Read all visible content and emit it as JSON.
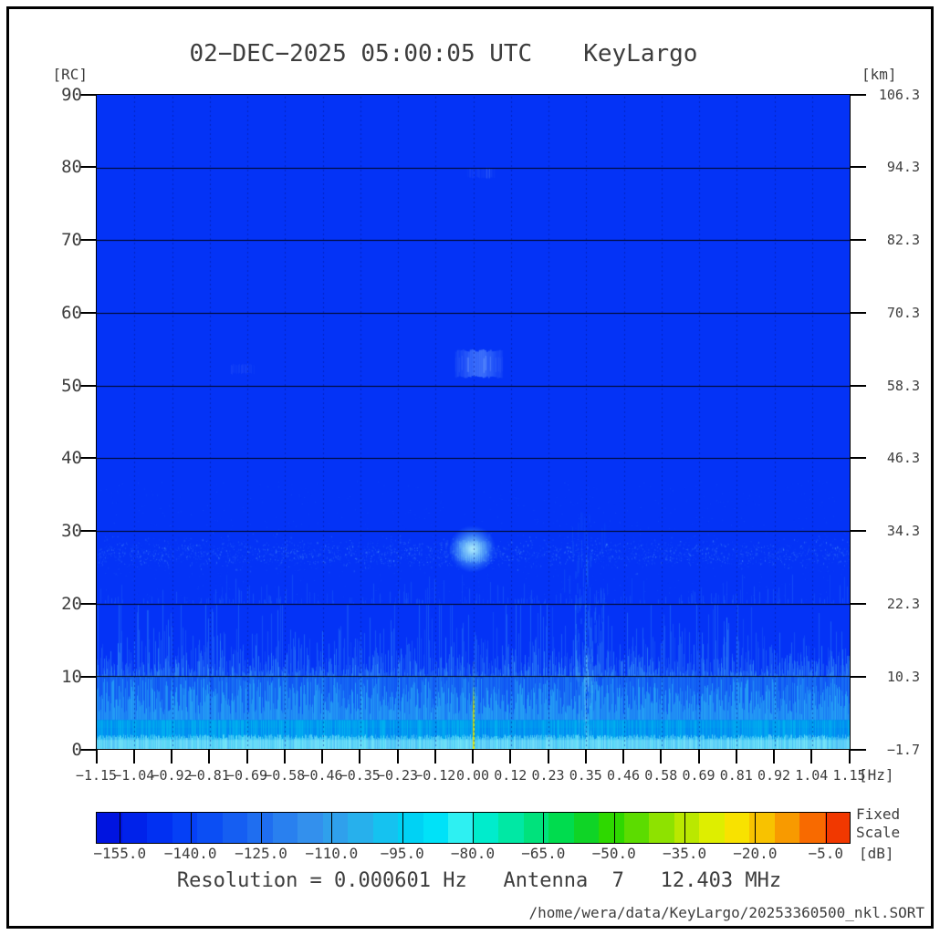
{
  "title": {
    "datetime": "02−DEC−2025 05:00:05 UTC",
    "station": "KeyLargo"
  },
  "axes": {
    "left": {
      "unit": "[RC]",
      "ticks": [
        "90",
        "80",
        "70",
        "60",
        "50",
        "40",
        "30",
        "20",
        "10",
        "0"
      ]
    },
    "right": {
      "unit": "[km]",
      "ticks": [
        "106.3",
        "94.3",
        "82.3",
        "70.3",
        "58.3",
        "46.3",
        "34.3",
        "22.3",
        "10.3",
        "−1.7"
      ]
    },
    "x": {
      "unit": "[Hz]",
      "ticks": [
        "−1.15",
        "−1.04",
        "−0.92",
        "−0.81",
        "−0.69",
        "−0.58",
        "−0.46",
        "−0.35",
        "−0.23",
        "−0.12",
        "0.00",
        "0.12",
        "0.23",
        "0.35",
        "0.46",
        "0.58",
        "0.69",
        "0.81",
        "0.92",
        "1.04",
        "1.15"
      ]
    }
  },
  "colorbar": {
    "unit": "[dB]",
    "mode_line1": "Fixed",
    "mode_line2": "Scale",
    "ticks": [
      "−155.0",
      "−140.0",
      "−125.0",
      "−110.0",
      "−95.0",
      "−80.0",
      "−65.0",
      "−50.0",
      "−35.0",
      "−20.0",
      "−5.0"
    ],
    "range_db": [
      -160,
      0
    ],
    "colors": [
      "#0014E0",
      "#0022EA",
      "#0130F2",
      "#0540F6",
      "#0B4EF4",
      "#155EF2",
      "#1F6EF0",
      "#2980EF",
      "#3390ED",
      "#2FA0EC",
      "#27B0EC",
      "#15C2F0",
      "#00D2F4",
      "#00E2F8",
      "#2EF0F2",
      "#00ECCC",
      "#00E8A4",
      "#00E27C",
      "#00DC4E",
      "#0FD426",
      "#2ED800",
      "#5CDC00",
      "#8EE200",
      "#BAE800",
      "#DEEE00",
      "#F8E200",
      "#F8C200",
      "#F89A00",
      "#F86A00",
      "#F13800"
    ]
  },
  "footer": {
    "text": "Resolution = 0.000601 Hz   Antenna  7   12.403 MHz"
  },
  "file_path": "/home/wera/data/KeyLargo/20253360500_nkl.SORT",
  "colors": {
    "plot_background": "#0433F6",
    "text": "#3D3D3D",
    "frame": "#000000",
    "noise_cyan": "#00D7EE",
    "noise_bright": "#8FF5FA",
    "dc_line_yellow": "#D8DC00",
    "echo_lightblue": "#6EA3FF",
    "echo_cyan": "#9FE3F8"
  },
  "chart_data": {
    "type": "heatmap",
    "title": "02-DEC-2025 05:00:05 UTC KeyLargo Doppler spectrum",
    "x_axis": {
      "label": "[Hz]",
      "min": -1.15,
      "max": 1.15,
      "tick_step": 0.115
    },
    "y_axis_left": {
      "label": "[RC]",
      "min": 0,
      "max": 90,
      "tick_step": 10
    },
    "y_axis_right": {
      "label": "[km]",
      "min": -1.7,
      "max": 106.3,
      "tick_step": 12
    },
    "z_axis": {
      "label": "[dB]",
      "min": -160,
      "max": 0,
      "scale_mode": "Fixed Scale"
    },
    "background_level_db": -157,
    "noise_bands": [
      {
        "rc": [
          0,
          4
        ],
        "hz": [
          -1.15,
          1.15
        ],
        "level_db": -118,
        "intensity": "high"
      },
      {
        "rc": [
          4,
          10
        ],
        "hz": [
          -1.15,
          1.15
        ],
        "level_db": -132,
        "intensity": "medium"
      },
      {
        "rc": [
          10,
          20
        ],
        "hz": [
          -1.15,
          1.15
        ],
        "level_db": -144,
        "intensity": "low"
      },
      {
        "rc": [
          20,
          24
        ],
        "hz": [
          -1.15,
          1.15
        ],
        "level_db": -151,
        "intensity": "sparse"
      }
    ],
    "speckle_band": {
      "rc": [
        24.5,
        29.5
      ],
      "hz": [
        -1.15,
        1.15
      ],
      "level_db": -148
    },
    "echoes": [
      {
        "name": "mid-range-echo",
        "rc": [
          51,
          55
        ],
        "hz": [
          -0.055,
          0.085
        ],
        "level_db": -128
      },
      {
        "name": "bright-echo",
        "rc": [
          26,
          29.5
        ],
        "hz": [
          -0.055,
          0.05
        ],
        "level_db": -112
      },
      {
        "name": "faint-echo-top",
        "rc": [
          78.5,
          80
        ],
        "hz": [
          -0.02,
          0.065
        ],
        "level_db": -150
      },
      {
        "name": "faint-echo-left",
        "rc": [
          51.5,
          53
        ],
        "hz": [
          -0.74,
          -0.67
        ],
        "level_db": -152
      }
    ],
    "ship_trace": {
      "rc": [
        0,
        33
      ],
      "hz_center": 0.345,
      "hz_spread": 0.05,
      "level_db": -138
    },
    "dc_line": {
      "hz": 0.0,
      "rc": [
        0,
        8.5
      ],
      "level_db": -60
    }
  }
}
